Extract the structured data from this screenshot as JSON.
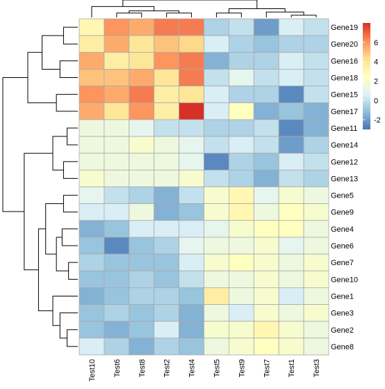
{
  "chart_data": {
    "type": "heatmap",
    "title": "",
    "xlabel": "",
    "ylabel": "",
    "x_categories": [
      "Test10",
      "Test6",
      "Test8",
      "Test2",
      "Test4",
      "Test5",
      "Test9",
      "Test7",
      "Test1",
      "Test3"
    ],
    "y_categories": [
      "Gene19",
      "Gene20",
      "Gene16",
      "Gene18",
      "Gene15",
      "Gene17",
      "Gene11",
      "Gene14",
      "Gene12",
      "Gene13",
      "Gene5",
      "Gene9",
      "Gene4",
      "Gene6",
      "Gene7",
      "Gene10",
      "Gene1",
      "Gene3",
      "Gene2",
      "Gene8"
    ],
    "values": [
      [
        3.0,
        6.0,
        5.5,
        6.5,
        6.5,
        -0.5,
        0.0,
        -2.0,
        0.5,
        0.0
      ],
      [
        3.5,
        5.5,
        4.0,
        5.0,
        4.5,
        0.5,
        -0.5,
        -1.0,
        -0.5,
        -0.5
      ],
      [
        5.5,
        3.5,
        4.0,
        6.0,
        6.5,
        -1.5,
        -0.5,
        -0.5,
        0.5,
        0.0
      ],
      [
        5.0,
        5.0,
        5.5,
        4.0,
        6.5,
        0.0,
        1.0,
        0.0,
        0.5,
        0.0
      ],
      [
        6.0,
        5.5,
        6.5,
        3.5,
        4.0,
        0.5,
        -0.5,
        -0.5,
        -2.5,
        0.0
      ],
      [
        5.5,
        4.0,
        6.0,
        3.5,
        8.0,
        0.5,
        2.5,
        -1.5,
        -1.0,
        -1.5
      ],
      [
        1.5,
        1.5,
        1.0,
        0.0,
        0.0,
        -0.5,
        -0.5,
        0.0,
        -2.5,
        -1.5
      ],
      [
        1.5,
        1.5,
        2.0,
        1.5,
        1.0,
        0.0,
        0.5,
        0.0,
        -2.0,
        -0.5
      ],
      [
        1.5,
        1.5,
        1.5,
        1.5,
        1.0,
        -2.5,
        -0.5,
        -1.0,
        0.5,
        0.0
      ],
      [
        2.0,
        1.5,
        1.5,
        1.5,
        2.0,
        0.0,
        -0.5,
        -1.5,
        0.0,
        -0.5
      ],
      [
        1.0,
        0.0,
        -0.5,
        -1.5,
        0.0,
        2.0,
        3.0,
        1.0,
        2.0,
        1.5
      ],
      [
        0.5,
        0.5,
        1.5,
        -1.5,
        -1.0,
        2.0,
        3.0,
        1.5,
        2.5,
        2.0
      ],
      [
        -1.5,
        -1.0,
        0.5,
        0.5,
        0.5,
        1.0,
        2.0,
        2.5,
        2.5,
        1.5
      ],
      [
        -1.0,
        -2.5,
        -1.0,
        -0.5,
        1.0,
        1.5,
        1.5,
        2.0,
        1.0,
        1.5
      ],
      [
        -0.5,
        -1.0,
        -1.0,
        -1.0,
        0.5,
        2.0,
        2.5,
        2.0,
        1.5,
        2.0
      ],
      [
        -1.0,
        -1.0,
        -0.5,
        -1.0,
        0.0,
        1.5,
        1.5,
        2.0,
        1.5,
        2.0
      ],
      [
        -1.5,
        -1.0,
        -0.5,
        -0.5,
        -1.0,
        3.5,
        1.5,
        2.0,
        0.5,
        1.5
      ],
      [
        -1.0,
        -0.5,
        -1.0,
        -0.5,
        -1.5,
        1.5,
        0.5,
        2.0,
        1.5,
        2.0
      ],
      [
        -1.0,
        -1.5,
        -1.0,
        0.5,
        -1.5,
        2.0,
        2.0,
        3.0,
        2.0,
        1.5
      ],
      [
        0.5,
        -0.5,
        -1.5,
        -0.5,
        -1.0,
        1.5,
        2.0,
        2.5,
        2.0,
        1.5
      ]
    ],
    "colorbar": {
      "range": [
        -3,
        8
      ],
      "ticks": [
        6,
        4,
        2,
        0,
        -2
      ],
      "tick_labels": [
        "6",
        "4",
        "2",
        "0",
        "-2"
      ],
      "colors": [
        "#4575B4",
        "#91BFDB",
        "#E0F3F8",
        "#FFFFBF",
        "#FEE090",
        "#FC8D59",
        "#D73027"
      ]
    },
    "cell_border_color": "#a9a9a9",
    "dendrogram_color": "#000000",
    "legend": "right",
    "grid": true
  }
}
